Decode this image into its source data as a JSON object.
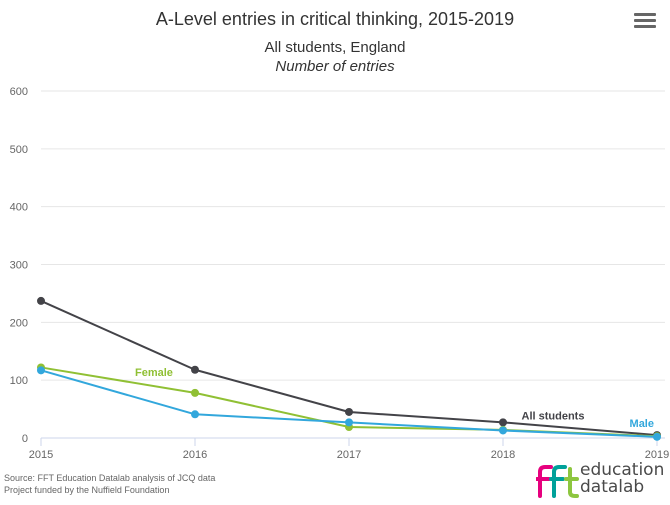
{
  "title": "A-Level entries in critical thinking, 2015-2019",
  "subtitle": "All students, England",
  "subtitle_line2": "Number of entries",
  "menu": {
    "icon": "hamburger-menu-icon"
  },
  "source_line1": "Source: FFT Education Datalab analysis of JCQ data",
  "source_line2": "Project funded by the Nuffield Foundation",
  "logo": {
    "mark": "fft",
    "line1": "education",
    "line2": "datalab",
    "colors": {
      "f1": "#e6007e",
      "f2": "#00a19a",
      "t": "#8dc63f"
    }
  },
  "chart_data": {
    "type": "line",
    "x": [
      2015,
      2016,
      2017,
      2018,
      2019
    ],
    "ylim": [
      0,
      600
    ],
    "yticks": [
      0,
      100,
      200,
      300,
      400,
      500,
      600
    ],
    "grid": true,
    "xlabel": "",
    "ylabel": "",
    "series": [
      {
        "name": "All students",
        "color": "#434348",
        "values": [
          237,
          118,
          45,
          27,
          5
        ]
      },
      {
        "name": "Female",
        "color": "#90c034",
        "values": [
          122,
          78,
          19,
          14,
          3
        ]
      },
      {
        "name": "Male",
        "color": "#32a7dc",
        "values": [
          117,
          41,
          27,
          13,
          2
        ]
      }
    ]
  }
}
